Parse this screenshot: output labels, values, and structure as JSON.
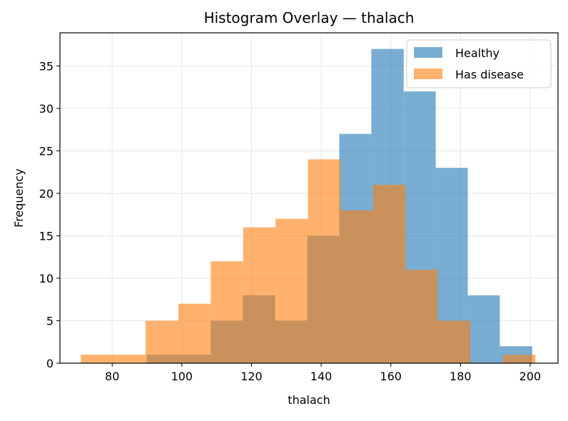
{
  "chart_data": {
    "type": "histogram",
    "title": "Histogram Overlay — thalach",
    "xlabel": "thalach",
    "ylabel": "Frequency",
    "xlim": [
      65,
      208
    ],
    "ylim": [
      0,
      38.9
    ],
    "xticks": [
      80,
      100,
      120,
      140,
      160,
      180,
      200
    ],
    "yticks": [
      0,
      5,
      10,
      15,
      20,
      25,
      30,
      35
    ],
    "grid": true,
    "legend_position": "top-right",
    "series": [
      {
        "name": "Healthy",
        "color": "#1f77b4",
        "opacity": 0.6,
        "bins": [
          {
            "x0": 89.9,
            "x1": 99.1,
            "count": 1
          },
          {
            "x0": 99.1,
            "x1": 108.3,
            "count": 1
          },
          {
            "x0": 108.3,
            "x1": 117.5,
            "count": 5
          },
          {
            "x0": 117.5,
            "x1": 126.8,
            "count": 8
          },
          {
            "x0": 126.8,
            "x1": 136.0,
            "count": 5
          },
          {
            "x0": 136.0,
            "x1": 145.2,
            "count": 15
          },
          {
            "x0": 145.2,
            "x1": 154.4,
            "count": 27
          },
          {
            "x0": 154.4,
            "x1": 163.7,
            "count": 37
          },
          {
            "x0": 163.7,
            "x1": 172.9,
            "count": 32
          },
          {
            "x0": 172.9,
            "x1": 182.1,
            "count": 23
          },
          {
            "x0": 182.1,
            "x1": 191.3,
            "count": 8
          },
          {
            "x0": 191.3,
            "x1": 200.6,
            "count": 2
          }
        ]
      },
      {
        "name": "Has disease",
        "color": "#ff7f0e",
        "opacity": 0.6,
        "bins": [
          {
            "x0": 71.0,
            "x1": 80.3,
            "count": 1
          },
          {
            "x0": 80.3,
            "x1": 89.6,
            "count": 1
          },
          {
            "x0": 89.6,
            "x1": 99.0,
            "count": 5
          },
          {
            "x0": 99.0,
            "x1": 108.3,
            "count": 7
          },
          {
            "x0": 108.3,
            "x1": 117.6,
            "count": 12
          },
          {
            "x0": 117.6,
            "x1": 126.9,
            "count": 16
          },
          {
            "x0": 126.9,
            "x1": 136.2,
            "count": 17
          },
          {
            "x0": 136.2,
            "x1": 145.6,
            "count": 24
          },
          {
            "x0": 145.6,
            "x1": 154.9,
            "count": 18
          },
          {
            "x0": 154.9,
            "x1": 164.2,
            "count": 21
          },
          {
            "x0": 164.2,
            "x1": 173.5,
            "count": 11
          },
          {
            "x0": 173.5,
            "x1": 182.8,
            "count": 5
          },
          {
            "x0": 182.8,
            "x1": 192.2,
            "count": 0
          },
          {
            "x0": 192.2,
            "x1": 201.5,
            "count": 1
          }
        ]
      }
    ]
  }
}
